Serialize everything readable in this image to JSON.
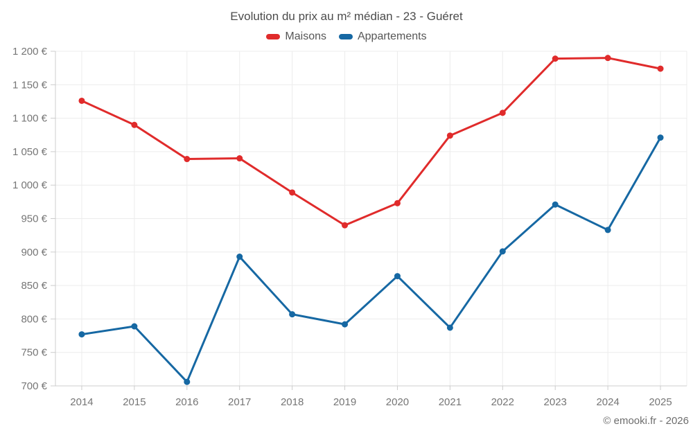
{
  "chart_data": {
    "type": "line",
    "title": "Evolution du prix au m² médian - 23 - Guéret",
    "categories": [
      "2014",
      "2015",
      "2016",
      "2017",
      "2018",
      "2019",
      "2020",
      "2021",
      "2022",
      "2023",
      "2024",
      "2025"
    ],
    "series": [
      {
        "name": "Maisons",
        "color": "#e02b2b",
        "values": [
          1126,
          1090,
          1039,
          1040,
          989,
          940,
          973,
          1074,
          1108,
          1189,
          1190,
          1174
        ]
      },
      {
        "name": "Appartements",
        "color": "#1668a3",
        "values": [
          777,
          789,
          706,
          893,
          807,
          792,
          864,
          787,
          901,
          971,
          933,
          1071
        ]
      }
    ],
    "ylim": [
      700,
      1200
    ],
    "y_ticks": [
      700,
      750,
      800,
      850,
      900,
      950,
      1000,
      1050,
      1100,
      1150,
      1200
    ],
    "y_tick_suffix": " €",
    "grid": true,
    "legend_position": "top",
    "grid_color": "#ececec",
    "axis_color": "#cccccc",
    "tick_label_color": "#757575"
  },
  "footer": {
    "copyright": "© emooki.fr - 2026"
  }
}
